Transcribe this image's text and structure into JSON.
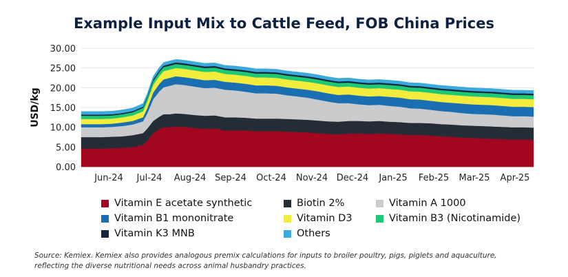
{
  "chart_data": {
    "type": "area",
    "title": "Example Input Mix to Cattle Feed, FOB China Prices",
    "ylabel": "USD/kg",
    "xlabel": "",
    "ylim": [
      0,
      30
    ],
    "yticks": [
      "0.00",
      "5.00",
      "10.00",
      "15.00",
      "20.00",
      "25.00",
      "30.00"
    ],
    "xtick_labels": [
      "Jun-24",
      "Jul-24",
      "Aug-24",
      "Sep-24",
      "Oct-24",
      "Nov-24",
      "Dec-24",
      "Jan-25",
      "Feb-25",
      "Mar-25",
      "Apr-25"
    ],
    "x": [
      0,
      0.5,
      1,
      1.5,
      2,
      2.5,
      3,
      3.2,
      3.5,
      3.8,
      4,
      4.3,
      4.6,
      5,
      5.5,
      6,
      6.5,
      7,
      7.5,
      8,
      8.5,
      9,
      9.5,
      10,
      10.5,
      11,
      11.5,
      12,
      12.5,
      13,
      13.5,
      14,
      14.5,
      15,
      15.5,
      16,
      16.5,
      17,
      17.5,
      18,
      18.5,
      19,
      19.5,
      20,
      20.5,
      21,
      21.5,
      22
    ],
    "series": [
      {
        "name": "Vitamin E acetate synthetic",
        "color": "#a3061f",
        "values": [
          4.6,
          4.6,
          4.6,
          4.7,
          4.8,
          5.0,
          5.5,
          6.5,
          8.5,
          9.5,
          10.0,
          10.0,
          10.2,
          10.1,
          9.8,
          9.6,
          9.7,
          9.2,
          9.2,
          9.2,
          9.0,
          9.0,
          9.0,
          8.9,
          8.8,
          8.7,
          8.5,
          8.3,
          8.2,
          8.4,
          8.4,
          8.3,
          8.4,
          8.3,
          8.2,
          8.0,
          8.0,
          7.9,
          7.7,
          7.6,
          7.4,
          7.3,
          7.2,
          7.1,
          7.0,
          6.9,
          6.9,
          6.8
        ]
      },
      {
        "name": "Biotin 2%",
        "color": "#242c36",
        "values": [
          2.9,
          2.9,
          2.9,
          2.9,
          2.9,
          3.0,
          3.0,
          3.1,
          3.1,
          3.2,
          3.3,
          3.3,
          3.3,
          3.3,
          3.3,
          3.3,
          3.3,
          3.3,
          3.3,
          3.2,
          3.2,
          3.2,
          3.2,
          3.2,
          3.2,
          3.2,
          3.2,
          3.2,
          3.2,
          3.2,
          3.2,
          3.2,
          3.2,
          3.1,
          3.1,
          3.1,
          3.1,
          3.1,
          3.1,
          3.1,
          3.1,
          3.1,
          3.1,
          3.1,
          3.1,
          3.1,
          3.1,
          3.1
        ]
      },
      {
        "name": "Vitamin A 1000",
        "color": "#c9cbcd",
        "values": [
          2.5,
          2.5,
          2.5,
          2.5,
          2.6,
          2.7,
          3.0,
          3.8,
          5.5,
          6.4,
          6.8,
          7.2,
          7.4,
          7.3,
          7.2,
          7.0,
          7.0,
          7.0,
          6.8,
          6.6,
          6.4,
          6.4,
          6.3,
          6.0,
          5.8,
          5.6,
          5.3,
          5.0,
          4.7,
          4.5,
          4.2,
          4.1,
          4.1,
          4.0,
          3.9,
          3.7,
          3.6,
          3.4,
          3.3,
          3.2,
          3.1,
          3.0,
          3.0,
          3.0,
          2.9,
          2.8,
          2.8,
          2.8
        ]
      },
      {
        "name": "Vitamin B1 mononitrate",
        "color": "#1a6fb3",
        "values": [
          0.8,
          0.8,
          0.8,
          0.8,
          0.9,
          0.9,
          1.0,
          1.3,
          1.7,
          1.9,
          2.0,
          2.0,
          2.0,
          2.0,
          2.0,
          2.0,
          2.0,
          2.0,
          2.0,
          2.0,
          2.0,
          2.0,
          2.0,
          2.0,
          2.0,
          2.0,
          2.1,
          2.1,
          2.1,
          2.2,
          2.2,
          2.2,
          2.2,
          2.3,
          2.3,
          2.3,
          2.3,
          2.3,
          2.3,
          2.3,
          2.4,
          2.4,
          2.4,
          2.4,
          2.4,
          2.4,
          2.4,
          2.4
        ]
      },
      {
        "name": "Vitamin D3",
        "color": "#f3ec3c",
        "values": [
          1.3,
          1.3,
          1.3,
          1.3,
          1.3,
          1.4,
          1.5,
          1.7,
          1.9,
          2.0,
          2.1,
          2.1,
          2.1,
          2.1,
          2.1,
          2.1,
          2.1,
          2.0,
          2.0,
          2.0,
          2.0,
          2.0,
          2.0,
          2.0,
          2.0,
          2.0,
          2.0,
          2.0,
          2.0,
          2.0,
          2.0,
          2.0,
          2.0,
          2.0,
          2.0,
          2.0,
          2.0,
          2.0,
          2.0,
          2.0,
          2.0,
          2.0,
          2.0,
          2.0,
          2.0,
          2.0,
          2.0,
          2.0
        ]
      },
      {
        "name": "Vitamin B3 (Nicotinamide)",
        "color": "#1ec874",
        "values": [
          0.8,
          0.8,
          0.8,
          0.8,
          0.8,
          0.8,
          0.9,
          0.9,
          1.0,
          1.0,
          1.0,
          1.0,
          1.0,
          1.0,
          1.0,
          1.0,
          1.0,
          1.0,
          1.0,
          1.0,
          1.0,
          1.0,
          1.0,
          1.0,
          1.0,
          1.0,
          1.0,
          1.0,
          1.0,
          1.0,
          1.0,
          1.0,
          1.0,
          1.0,
          1.0,
          1.0,
          1.0,
          1.0,
          1.0,
          1.0,
          1.0,
          1.0,
          1.0,
          1.0,
          1.0,
          1.0,
          1.0,
          1.0
        ]
      },
      {
        "name": "Vitamin K3 MNB",
        "color": "#13253f",
        "values": [
          0.3,
          0.3,
          0.3,
          0.3,
          0.3,
          0.3,
          0.3,
          0.3,
          0.4,
          0.4,
          0.4,
          0.4,
          0.4,
          0.4,
          0.4,
          0.4,
          0.4,
          0.4,
          0.4,
          0.4,
          0.4,
          0.4,
          0.4,
          0.4,
          0.4,
          0.4,
          0.4,
          0.4,
          0.4,
          0.4,
          0.4,
          0.4,
          0.4,
          0.4,
          0.4,
          0.4,
          0.4,
          0.4,
          0.4,
          0.4,
          0.4,
          0.4,
          0.4,
          0.4,
          0.4,
          0.4,
          0.4,
          0.4
        ]
      },
      {
        "name": "Others",
        "color": "#3aa9dc",
        "values": [
          0.8,
          0.8,
          0.8,
          0.8,
          0.8,
          0.8,
          0.8,
          0.8,
          0.8,
          0.8,
          0.8,
          0.8,
          0.8,
          0.8,
          0.8,
          0.8,
          0.8,
          0.8,
          0.8,
          0.8,
          0.8,
          0.8,
          0.8,
          0.8,
          0.8,
          0.8,
          0.8,
          0.8,
          0.8,
          0.8,
          0.8,
          0.8,
          0.8,
          0.8,
          0.8,
          0.8,
          0.8,
          0.8,
          0.8,
          0.8,
          0.8,
          0.8,
          0.8,
          0.8,
          0.8,
          0.8,
          0.8,
          0.8
        ]
      }
    ],
    "legend": [
      "Vitamin E acetate synthetic",
      "Biotin 2%",
      "Vitamin A 1000",
      "Vitamin B1 mononitrate",
      "Vitamin D3",
      "Vitamin B3 (Nicotinamide)",
      "Vitamin K3 MNB",
      "Others"
    ],
    "grid": true,
    "legend_position": "bottom"
  },
  "source": {
    "line1": "Source: Kemiex. Kemiex also provides analogous premix calculations for inputs to broiler poultry, pigs, piglets and aquaculture,",
    "line2": "reflecting the diverse nutritional needs across animal husbandry practices."
  }
}
